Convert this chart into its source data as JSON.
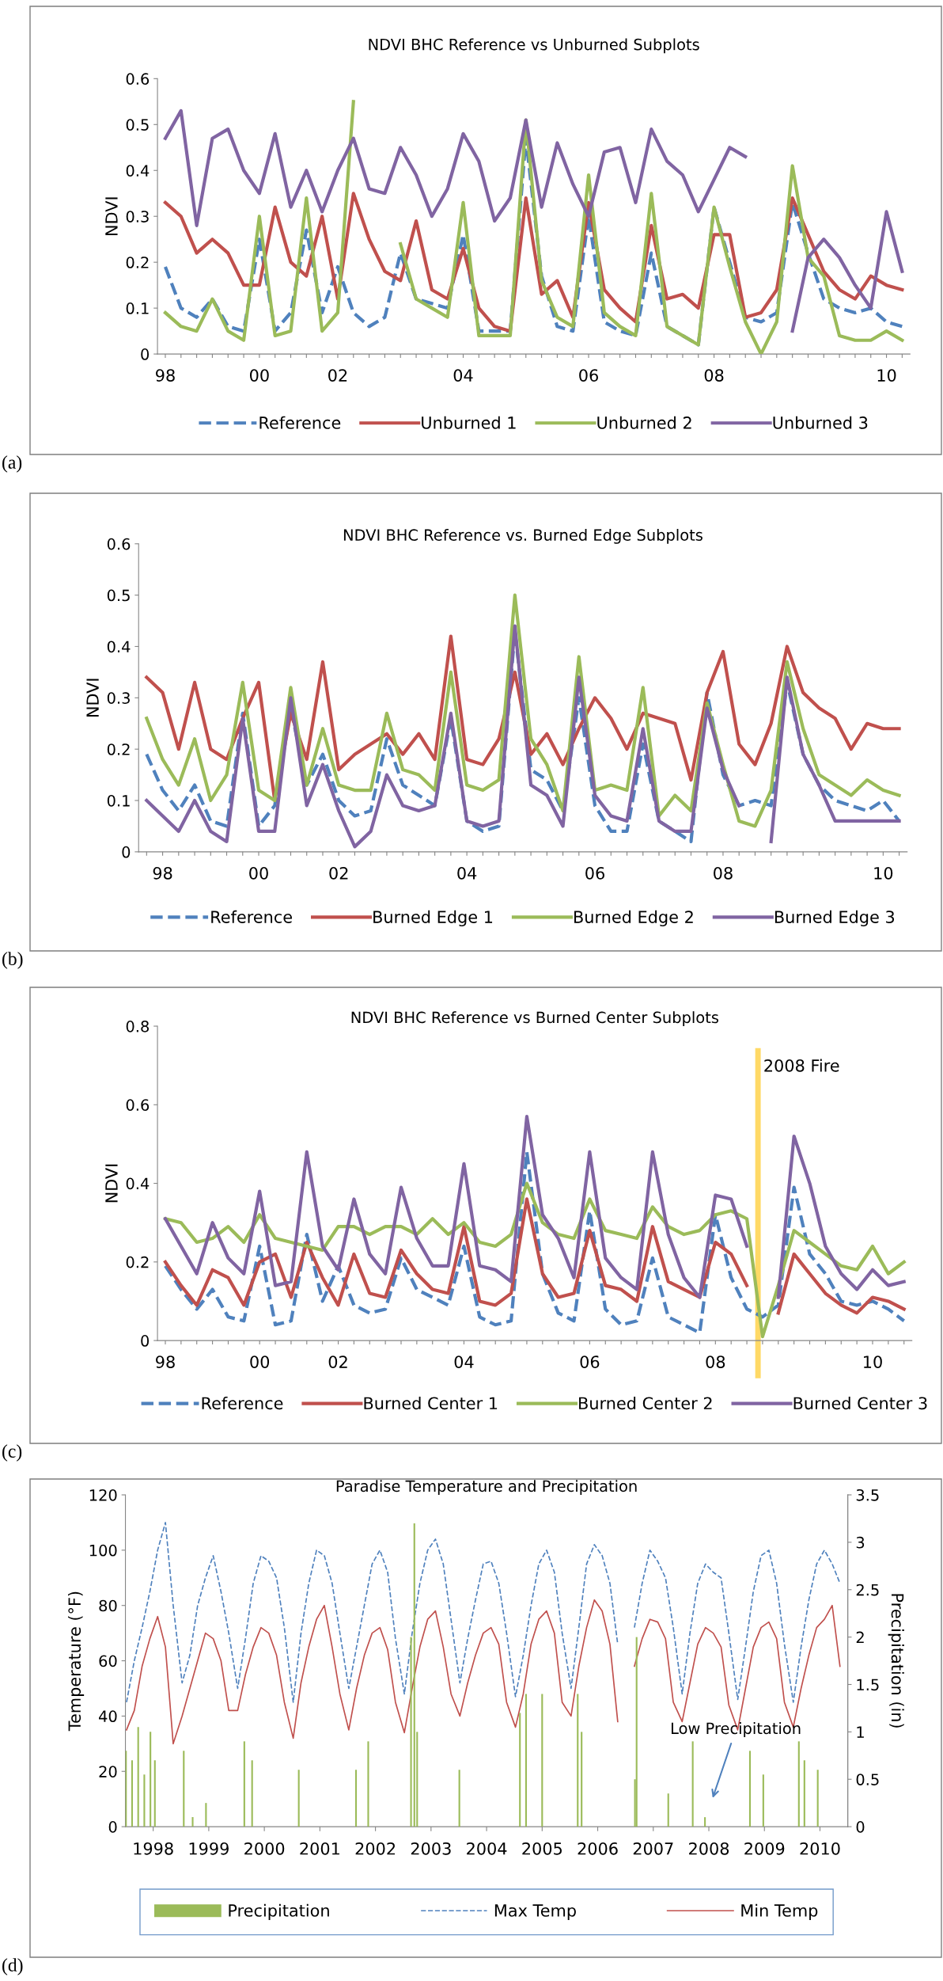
{
  "chart_data": [
    {
      "type": "line",
      "title": "NDVI BHC Reference vs Unburned Subplots",
      "ylabel": "NDVI",
      "ylim": [
        0,
        0.6
      ],
      "yticks": [
        0,
        0.1,
        0.2,
        0.3,
        0.4,
        0.5,
        0.6
      ],
      "grid": false,
      "legend": "bottom",
      "annotations": [
        "(a)"
      ],
      "categories": [
        "98",
        null,
        null,
        null,
        null,
        null,
        "00",
        null,
        null,
        null,
        null,
        "02",
        null,
        null,
        null,
        null,
        null,
        null,
        null,
        "04",
        null,
        null,
        null,
        null,
        null,
        null,
        null,
        "06",
        null,
        null,
        null,
        null,
        null,
        null,
        null,
        "08",
        null,
        null,
        null,
        null,
        null,
        null,
        null,
        null,
        null,
        null,
        "10",
        null
      ],
      "series": [
        {
          "name": "Reference",
          "color": "#4f81bd",
          "line_style": "dashed",
          "values": [
            0.19,
            0.1,
            0.08,
            0.12,
            0.06,
            0.05,
            0.25,
            0.05,
            0.09,
            0.27,
            0.09,
            0.19,
            0.09,
            0.06,
            0.08,
            0.22,
            0.12,
            0.11,
            0.1,
            0.26,
            0.05,
            0.05,
            0.05,
            0.47,
            0.17,
            0.06,
            0.05,
            0.3,
            0.07,
            0.05,
            0.04,
            0.22,
            0.06,
            0.04,
            0.02,
            0.32,
            0.2,
            0.08,
            0.07,
            0.09,
            0.33,
            0.22,
            0.12,
            0.1,
            0.09,
            0.1,
            0.07,
            0.06
          ]
        },
        {
          "name": "Unburned 1",
          "color": "#c0504d",
          "values": [
            0.33,
            0.3,
            0.22,
            0.25,
            0.22,
            0.15,
            0.15,
            0.32,
            0.2,
            0.17,
            0.3,
            0.12,
            0.35,
            0.25,
            0.18,
            0.16,
            0.29,
            0.14,
            0.12,
            0.23,
            0.1,
            0.06,
            0.05,
            0.34,
            0.13,
            0.16,
            0.08,
            0.33,
            0.14,
            0.1,
            0.07,
            0.28,
            0.12,
            0.13,
            0.1,
            0.26,
            0.26,
            0.08,
            0.09,
            0.14,
            0.34,
            0.26,
            0.18,
            0.14,
            0.12,
            0.17,
            0.15,
            0.14
          ]
        },
        {
          "name": "Unburned 2",
          "color": "#9bbb59",
          "values": [
            0.09,
            0.06,
            0.05,
            0.12,
            0.05,
            0.03,
            0.3,
            0.04,
            0.05,
            0.34,
            0.05,
            0.09,
            0.55,
            null,
            null,
            0.24,
            0.12,
            0.1,
            0.08,
            0.33,
            0.04,
            0.04,
            0.04,
            0.51,
            0.16,
            0.08,
            0.06,
            0.39,
            0.09,
            0.06,
            0.04,
            0.35,
            0.06,
            0.04,
            0.02,
            0.32,
            0.19,
            0.07,
            0.0,
            0.07,
            0.41,
            0.21,
            0.17,
            0.04,
            0.03,
            0.03,
            0.05,
            0.03
          ]
        },
        {
          "name": "Unburned 3",
          "color": "#8064a2",
          "values": [
            0.47,
            0.53,
            0.28,
            0.47,
            0.49,
            0.4,
            0.35,
            0.48,
            0.32,
            0.4,
            0.31,
            0.4,
            0.47,
            0.36,
            0.35,
            0.45,
            0.39,
            0.3,
            0.36,
            0.48,
            0.42,
            0.29,
            0.34,
            0.51,
            0.32,
            0.46,
            0.37,
            0.3,
            0.44,
            0.45,
            0.33,
            0.49,
            0.42,
            0.39,
            0.31,
            0.38,
            0.45,
            0.43,
            null,
            null,
            0.05,
            0.21,
            0.25,
            0.21,
            0.15,
            0.1,
            0.31,
            0.18
          ]
        }
      ]
    },
    {
      "type": "line",
      "title": "NDVI BHC Reference vs. Burned Edge Subplots",
      "ylabel": "NDVI",
      "ylim": [
        0,
        0.6
      ],
      "yticks": [
        0,
        0.1,
        0.2,
        0.3,
        0.4,
        0.5,
        0.6
      ],
      "grid": false,
      "legend": "bottom",
      "annotations": [
        "(b)"
      ],
      "categories": [
        null,
        "98",
        null,
        null,
        null,
        null,
        null,
        "00",
        null,
        null,
        null,
        null,
        "02",
        null,
        null,
        null,
        null,
        null,
        null,
        null,
        "04",
        null,
        null,
        null,
        null,
        null,
        null,
        null,
        "06",
        null,
        null,
        null,
        null,
        null,
        null,
        null,
        "08",
        null,
        null,
        null,
        null,
        null,
        null,
        null,
        null,
        null,
        "10",
        null
      ],
      "series": [
        {
          "name": "Reference",
          "color": "#4f81bd",
          "line_style": "dashed",
          "values": [
            0.19,
            0.12,
            0.08,
            0.13,
            0.06,
            0.05,
            0.27,
            0.05,
            0.09,
            0.28,
            0.13,
            0.19,
            0.1,
            0.07,
            0.08,
            0.22,
            0.13,
            0.11,
            0.09,
            0.26,
            0.06,
            0.04,
            0.05,
            0.43,
            0.16,
            0.14,
            0.08,
            0.3,
            0.09,
            0.04,
            0.04,
            0.21,
            0.06,
            0.04,
            0.02,
            0.31,
            0.15,
            0.09,
            0.1,
            0.09,
            0.33,
            0.19,
            0.13,
            0.1,
            0.09,
            0.08,
            0.1,
            0.06
          ]
        },
        {
          "name": "Burned Edge 1",
          "color": "#c0504d",
          "values": [
            0.34,
            0.31,
            0.2,
            0.33,
            0.2,
            0.18,
            0.26,
            0.33,
            0.1,
            0.27,
            0.18,
            0.37,
            0.16,
            0.19,
            0.21,
            0.23,
            0.19,
            0.23,
            0.18,
            0.42,
            0.18,
            0.17,
            0.22,
            0.35,
            0.19,
            0.23,
            0.17,
            0.24,
            0.3,
            0.26,
            0.2,
            0.27,
            0.26,
            0.25,
            0.14,
            0.31,
            0.39,
            0.21,
            0.17,
            0.25,
            0.4,
            0.31,
            0.28,
            0.26,
            0.2,
            0.25,
            0.24,
            0.24
          ]
        },
        {
          "name": "Burned Edge 2",
          "color": "#9bbb59",
          "values": [
            0.26,
            0.18,
            0.13,
            0.22,
            0.1,
            0.15,
            0.33,
            0.12,
            0.1,
            0.32,
            0.13,
            0.24,
            0.13,
            0.12,
            0.12,
            0.27,
            0.16,
            0.15,
            0.12,
            0.35,
            0.13,
            0.12,
            0.14,
            0.5,
            0.22,
            0.17,
            0.08,
            0.38,
            0.12,
            0.13,
            0.12,
            0.32,
            0.07,
            0.11,
            0.08,
            0.29,
            0.17,
            0.06,
            0.05,
            0.12,
            0.37,
            0.24,
            0.15,
            0.13,
            0.11,
            0.14,
            0.12,
            0.11
          ]
        },
        {
          "name": "Burned Edge 3",
          "color": "#8064a2",
          "values": [
            0.1,
            0.07,
            0.04,
            0.1,
            0.04,
            0.02,
            0.26,
            0.04,
            0.04,
            0.3,
            0.09,
            0.17,
            0.08,
            0.01,
            0.04,
            0.15,
            0.09,
            0.08,
            0.09,
            0.27,
            0.06,
            0.05,
            0.06,
            0.44,
            0.13,
            0.11,
            0.05,
            0.34,
            0.11,
            0.07,
            0.06,
            0.24,
            0.06,
            0.04,
            0.04,
            0.28,
            0.16,
            0.09,
            null,
            0.02,
            0.34,
            0.19,
            0.13,
            0.06,
            0.06,
            0.06,
            0.06,
            0.06
          ]
        }
      ]
    },
    {
      "type": "line",
      "title": "NDVI BHC Reference vs Burned Center Subplots",
      "ylabel": "NDVI",
      "ylim": [
        0,
        0.8
      ],
      "yticks": [
        0,
        0.2,
        0.4,
        0.6,
        0.8
      ],
      "grid": false,
      "legend": "bottom",
      "annotations": [
        "(c)",
        "2008 Fire"
      ],
      "categories": [
        "98",
        null,
        null,
        null,
        null,
        null,
        "00",
        null,
        null,
        null,
        null,
        "02",
        null,
        null,
        null,
        null,
        null,
        null,
        null,
        "04",
        null,
        null,
        null,
        null,
        null,
        null,
        null,
        "06",
        null,
        null,
        null,
        null,
        null,
        null,
        null,
        "08",
        null,
        null,
        null,
        null,
        null,
        null,
        null,
        null,
        null,
        "10",
        null,
        null
      ],
      "series": [
        {
          "name": "Reference",
          "color": "#4f81bd",
          "line_style": "dashed",
          "values": [
            0.19,
            0.13,
            0.08,
            0.13,
            0.06,
            0.05,
            0.24,
            0.04,
            0.05,
            0.27,
            0.1,
            0.19,
            0.09,
            0.07,
            0.08,
            0.21,
            0.13,
            0.11,
            0.09,
            0.24,
            0.06,
            0.04,
            0.05,
            0.48,
            0.17,
            0.07,
            0.05,
            0.33,
            0.08,
            0.04,
            0.05,
            0.21,
            0.06,
            0.04,
            0.02,
            0.32,
            0.16,
            0.08,
            0.06,
            0.09,
            0.39,
            0.22,
            0.17,
            0.1,
            0.09,
            0.1,
            0.08,
            0.05
          ]
        },
        {
          "name": "Burned Center 1",
          "color": "#c0504d",
          "values": [
            0.2,
            0.14,
            0.09,
            0.18,
            0.16,
            0.09,
            0.2,
            0.22,
            0.11,
            0.25,
            0.16,
            0.09,
            0.22,
            0.12,
            0.11,
            0.23,
            0.17,
            0.13,
            0.12,
            0.29,
            0.1,
            0.09,
            0.12,
            0.36,
            0.17,
            0.11,
            0.12,
            0.28,
            0.14,
            0.13,
            0.1,
            0.29,
            0.15,
            0.13,
            0.11,
            0.25,
            0.22,
            0.14,
            null,
            0.07,
            0.22,
            0.17,
            0.12,
            0.09,
            0.07,
            0.11,
            0.1,
            0.08
          ]
        },
        {
          "name": "Burned Center 2",
          "color": "#9bbb59",
          "values": [
            0.31,
            0.3,
            0.25,
            0.26,
            0.29,
            0.25,
            0.32,
            0.26,
            0.25,
            0.24,
            0.23,
            0.29,
            0.29,
            0.27,
            0.29,
            0.29,
            0.27,
            0.31,
            0.27,
            0.3,
            0.25,
            0.24,
            0.27,
            0.4,
            0.3,
            0.27,
            0.26,
            0.36,
            0.28,
            0.27,
            0.26,
            0.34,
            0.29,
            0.27,
            0.28,
            0.32,
            0.33,
            0.31,
            0.01,
            0.14,
            0.28,
            0.25,
            0.22,
            0.19,
            0.18,
            0.24,
            0.17,
            0.2
          ]
        },
        {
          "name": "Burned Center 3",
          "color": "#8064a2",
          "values": [
            0.31,
            0.24,
            0.17,
            0.3,
            0.21,
            0.17,
            0.38,
            0.14,
            0.15,
            0.48,
            0.24,
            0.18,
            0.36,
            0.22,
            0.17,
            0.39,
            0.26,
            0.19,
            0.19,
            0.45,
            0.19,
            0.18,
            0.15,
            0.57,
            0.32,
            0.26,
            0.16,
            0.48,
            0.21,
            0.16,
            0.13,
            0.48,
            0.27,
            0.16,
            0.11,
            0.37,
            0.36,
            0.24,
            null,
            0.11,
            0.52,
            0.4,
            0.24,
            0.17,
            0.13,
            0.18,
            0.14,
            0.15
          ]
        }
      ]
    },
    {
      "type": "line",
      "title": "Paradise Temperature and Precipitation",
      "ylabel": "Temperature (°F)",
      "y2label": "Precipitation (in)",
      "grid": false,
      "legend": "bottom",
      "xlim": [
        1997.5,
        2010.5
      ],
      "xticks": [
        1998,
        1999,
        2000,
        2001,
        2002,
        2003,
        2004,
        2005,
        2006,
        2007,
        2008,
        2009,
        2010
      ],
      "ylim": [
        0,
        120
      ],
      "yticks": [
        0,
        20,
        40,
        60,
        80,
        100,
        120
      ],
      "y2lim": [
        0,
        3.5
      ],
      "y2ticks": [
        0,
        0.5,
        1,
        1.5,
        2,
        2.5,
        3,
        3.5
      ],
      "annotations": [
        "(d)",
        "Low Precipitation"
      ],
      "series": [
        {
          "name": "Precipitation",
          "type": "bar",
          "axis": "y2",
          "color": "#9bbb59",
          "x": [
            1997.51,
            1997.62,
            1997.73,
            1997.84,
            1997.95,
            1998.03,
            1998.55,
            1998.71,
            1998.95,
            1999.64,
            1999.78,
            2000.62,
            2001.65,
            2001.87,
            2002.64,
            2002.7,
            2002.75,
            2003.51,
            2004.6,
            2004.71,
            2005.0,
            2005.64,
            2005.71,
            2006.67,
            2006.7,
            2007.27,
            2007.71,
            2007.93,
            2008.74,
            2008.98,
            2009.62,
            2009.72,
            2009.96
          ],
          "values": [
            0.8,
            0.7,
            1.05,
            0.55,
            1.0,
            0.7,
            0.8,
            0.1,
            0.25,
            0.9,
            0.7,
            0.6,
            0.6,
            0.9,
            2.0,
            3.2,
            1.0,
            0.6,
            1.2,
            1.4,
            1.4,
            1.4,
            1.0,
            0.5,
            2.0,
            0.35,
            0.9,
            0.1,
            0.8,
            0.55,
            0.9,
            0.7,
            0.6
          ]
        },
        {
          "name": "Max Temp",
          "type": "line",
          "color": "#4f81bd",
          "line_style": "dashed",
          "x": [
            1997.52,
            1997.66,
            1997.8,
            1997.94,
            1998.08,
            1998.22,
            1998.36,
            1998.52,
            1998.66,
            1998.8,
            1998.94,
            1999.08,
            1999.22,
            1999.36,
            1999.52,
            1999.66,
            1999.8,
            1999.94,
            2000.08,
            2000.22,
            2000.36,
            2000.52,
            2000.66,
            2000.8,
            2000.94,
            2001.08,
            2001.22,
            2001.36,
            2001.52,
            2001.66,
            2001.8,
            2001.94,
            2002.08,
            2002.22,
            2002.36,
            2002.52,
            2002.66,
            2002.8,
            2002.94,
            2003.08,
            2003.22,
            2003.36,
            2003.52,
            2003.66,
            2003.8,
            2003.94,
            2004.08,
            2004.22,
            2004.36,
            2004.52,
            2004.66,
            2004.8,
            2004.94,
            2005.08,
            2005.22,
            2005.36,
            2005.52,
            2005.66,
            2005.8,
            2005.94,
            2006.08,
            2006.22,
            2006.36,
            2006.52,
            2006.66,
            2006.8,
            2006.94,
            2007.08,
            2007.22,
            2007.36,
            2007.52,
            2007.66,
            2007.8,
            2007.94,
            2008.08,
            2008.22,
            2008.36,
            2008.52,
            2008.66,
            2008.8,
            2008.94,
            2009.08,
            2009.22,
            2009.36,
            2009.52,
            2009.66,
            2009.8,
            2009.94,
            2010.08,
            2010.22,
            2010.36
          ],
          "values": [
            45,
            60,
            72,
            85,
            100,
            110,
            80,
            52,
            62,
            80,
            90,
            98,
            85,
            70,
            50,
            68,
            88,
            98,
            96,
            90,
            72,
            45,
            70,
            88,
            100,
            98,
            88,
            70,
            50,
            65,
            80,
            95,
            100,
            92,
            68,
            48,
            70,
            88,
            100,
            104,
            95,
            75,
            52,
            68,
            82,
            95,
            96,
            88,
            70,
            47,
            62,
            80,
            95,
            100,
            92,
            70,
            50,
            72,
            95,
            102,
            98,
            88,
            66,
            null,
            72,
            88,
            100,
            96,
            90,
            72,
            48,
            70,
            88,
            95,
            92,
            90,
            70,
            46,
            65,
            85,
            98,
            100,
            88,
            66,
            45,
            65,
            82,
            95,
            100,
            95,
            88
          ]
        },
        {
          "name": "Min Temp",
          "type": "line",
          "color": "#c0504d",
          "line_style": "solid",
          "x": [
            1997.52,
            1997.66,
            1997.8,
            1997.94,
            1998.08,
            1998.22,
            1998.36,
            1998.52,
            1998.66,
            1998.8,
            1998.94,
            1999.08,
            1999.22,
            1999.36,
            1999.52,
            1999.66,
            1999.8,
            1999.94,
            2000.08,
            2000.22,
            2000.36,
            2000.52,
            2000.66,
            2000.8,
            2000.94,
            2001.08,
            2001.22,
            2001.36,
            2001.52,
            2001.66,
            2001.8,
            2001.94,
            2002.08,
            2002.22,
            2002.36,
            2002.52,
            2002.66,
            2002.8,
            2002.94,
            2003.08,
            2003.22,
            2003.36,
            2003.52,
            2003.66,
            2003.8,
            2003.94,
            2004.08,
            2004.22,
            2004.36,
            2004.52,
            2004.66,
            2004.8,
            2004.94,
            2005.08,
            2005.22,
            2005.36,
            2005.52,
            2005.66,
            2005.8,
            2005.94,
            2006.08,
            2006.22,
            2006.36,
            2006.52,
            2006.66,
            2006.8,
            2006.94,
            2007.08,
            2007.22,
            2007.36,
            2007.52,
            2007.66,
            2007.8,
            2007.94,
            2008.08,
            2008.22,
            2008.36,
            2008.52,
            2008.66,
            2008.8,
            2008.94,
            2009.08,
            2009.22,
            2009.36,
            2009.52,
            2009.66,
            2009.8,
            2009.94,
            2010.08,
            2010.22,
            2010.36
          ],
          "values": [
            35,
            42,
            58,
            68,
            76,
            65,
            30,
            40,
            50,
            60,
            70,
            68,
            60,
            42,
            42,
            55,
            65,
            72,
            70,
            62,
            45,
            32,
            52,
            65,
            75,
            80,
            65,
            48,
            35,
            50,
            62,
            70,
            72,
            64,
            45,
            34,
            50,
            65,
            75,
            78,
            65,
            48,
            40,
            52,
            62,
            70,
            72,
            66,
            45,
            36,
            48,
            66,
            75,
            78,
            70,
            45,
            40,
            58,
            72,
            82,
            78,
            66,
            38,
            null,
            58,
            68,
            75,
            74,
            68,
            45,
            38,
            52,
            66,
            72,
            70,
            65,
            44,
            35,
            50,
            65,
            72,
            74,
            68,
            45,
            36,
            50,
            62,
            72,
            75,
            80,
            58
          ]
        }
      ]
    }
  ]
}
